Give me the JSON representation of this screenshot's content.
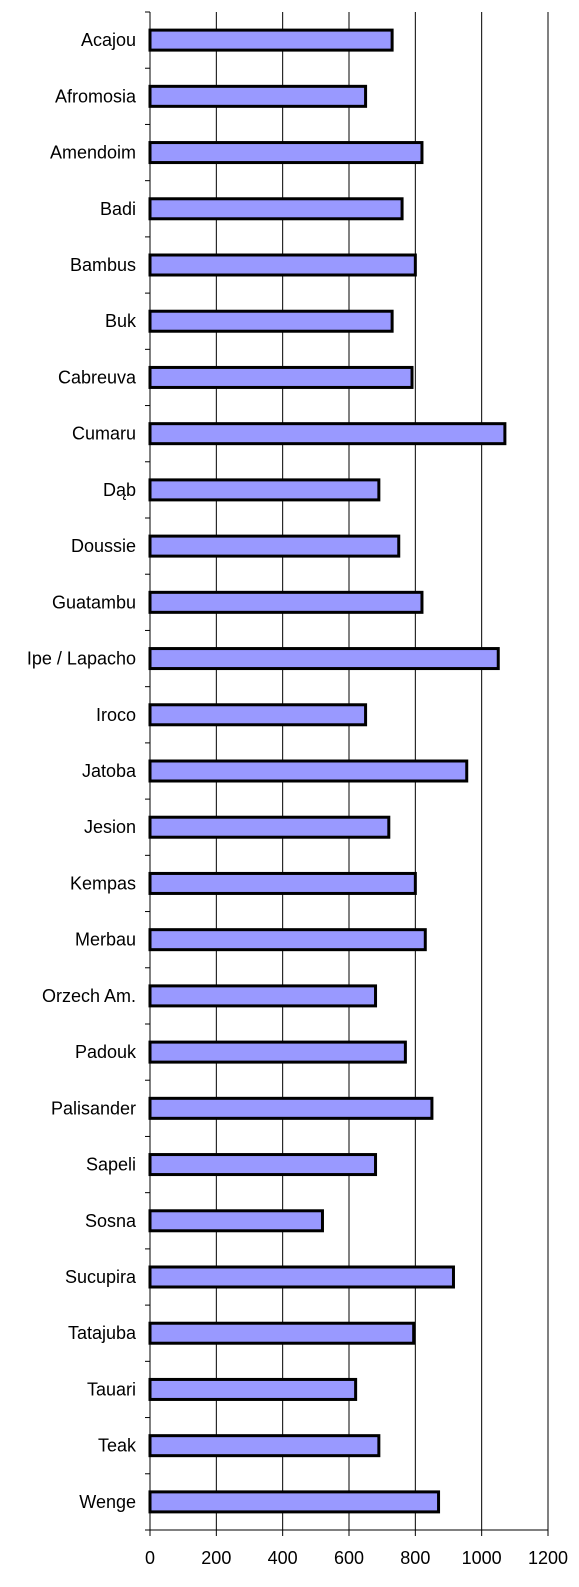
{
  "chart_data": {
    "type": "bar",
    "orientation": "horizontal",
    "categories": [
      "Acajou",
      "Afromosia",
      "Amendoim",
      "Badi",
      "Bambus",
      "Buk",
      "Cabreuva",
      "Cumaru",
      "Dąb",
      "Doussie",
      "Guatambu",
      "Ipe / Lapacho",
      "Iroco",
      "Jatoba",
      "Jesion",
      "Kempas",
      "Merbau",
      "Orzech Am.",
      "Padouk",
      "Palisander",
      "Sapeli",
      "Sosna",
      "Sucupira",
      "Tatajuba",
      "Tauari",
      "Teak",
      "Wenge"
    ],
    "values": [
      730,
      650,
      820,
      760,
      800,
      730,
      790,
      1070,
      690,
      750,
      820,
      1050,
      650,
      955,
      720,
      800,
      830,
      680,
      770,
      850,
      680,
      520,
      915,
      795,
      620,
      690,
      870
    ],
    "xlim": [
      0,
      1200
    ],
    "xticks": [
      0,
      200,
      400,
      600,
      800,
      1000,
      1200
    ],
    "grid": "vertical major gridlines",
    "legend": "none",
    "title": "",
    "xlabel": "",
    "ylabel": ""
  },
  "colors": {
    "bar_fill": "#9999ff",
    "bar_stroke": "#000000",
    "gridline": "#000000",
    "axis": "#000000",
    "background": "#ffffff"
  }
}
